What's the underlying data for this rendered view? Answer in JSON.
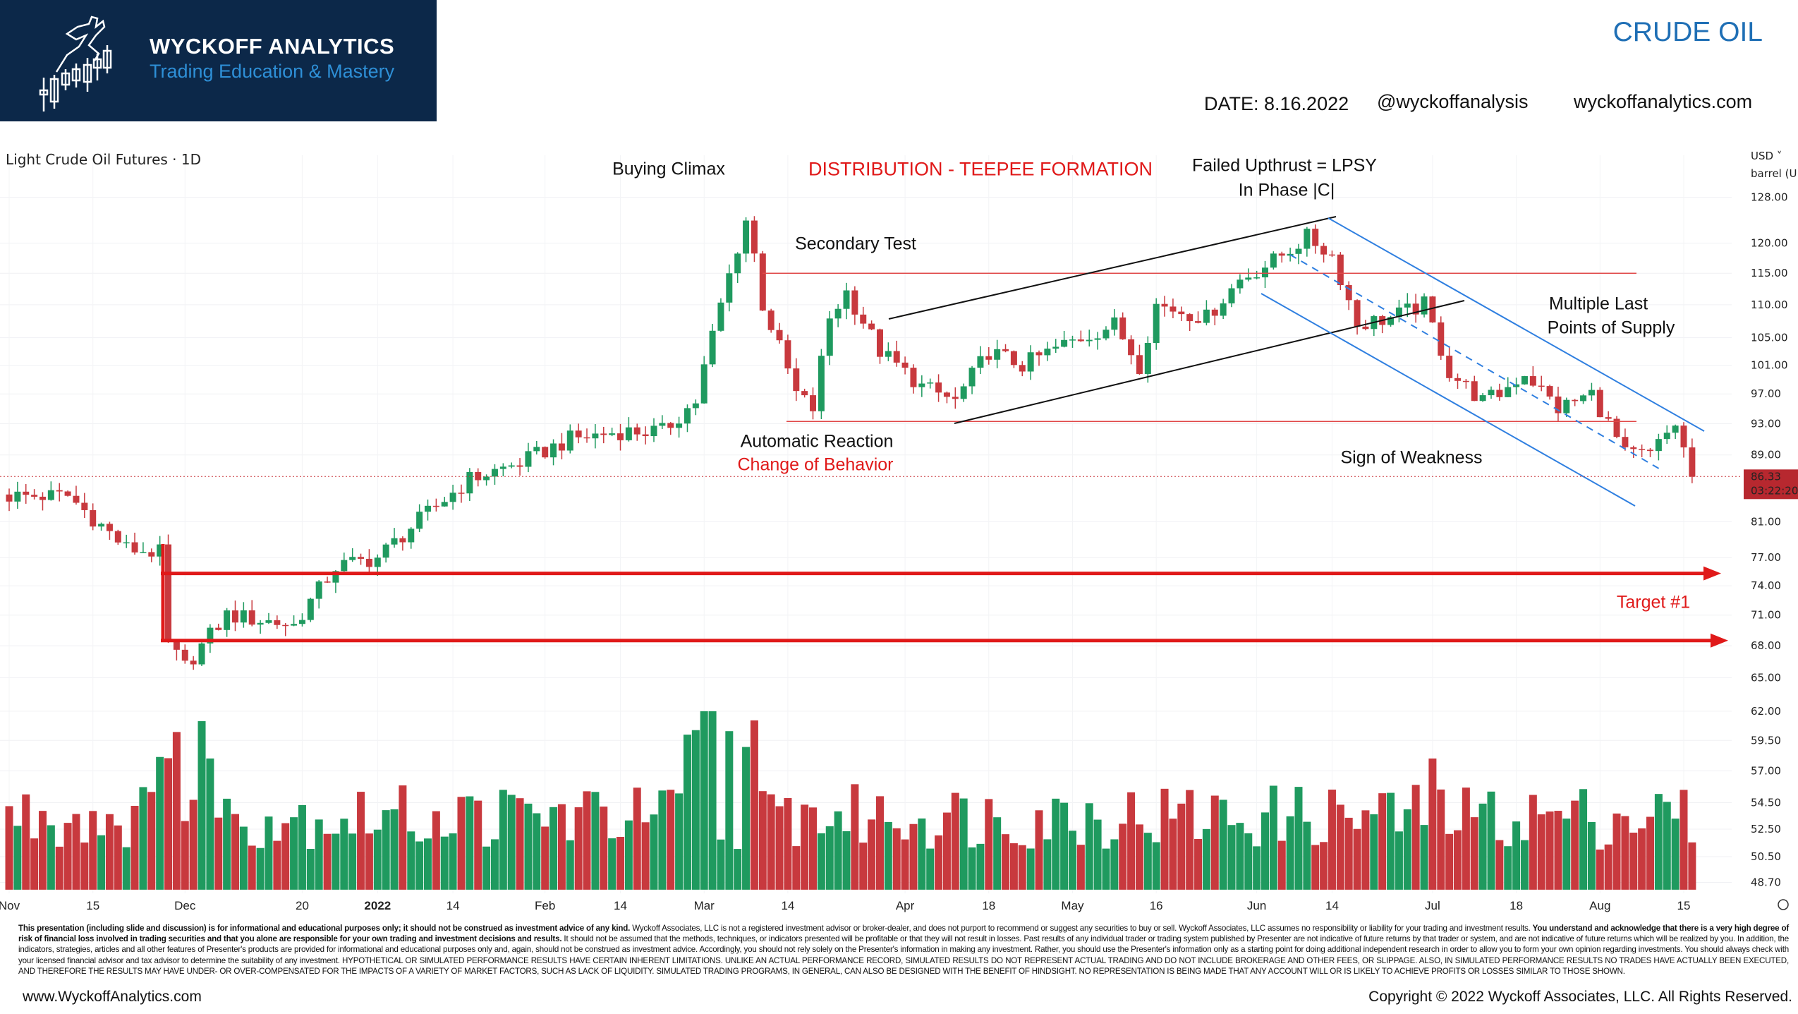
{
  "brand": {
    "name": "WYCKOFF ANALYTICS",
    "tagline": "Trading Education & Mastery"
  },
  "header": {
    "title": "CRUDE OIL",
    "date": "DATE: 8.16.2022",
    "handle": "@wyckoffanalysis",
    "website": "wyckoffanalytics.com"
  },
  "colors": {
    "up": "#1f9a5f",
    "down": "#c8393e",
    "annotation_red": "#e01919",
    "channel_blue": "#2f7fe0",
    "brand_bg": "#0c2849"
  },
  "chart_data": {
    "type": "candlestick",
    "title": "Light Crude Oil Futures · 1D",
    "currency": "USD",
    "unit": "barrel (U",
    "scale": "log",
    "y_ticks": [
      "128.00",
      "120.00",
      "115.00",
      "110.00",
      "105.00",
      "101.00",
      "97.00",
      "93.00",
      "89.00",
      "81.00",
      "77.00",
      "74.00",
      "71.00",
      "68.00",
      "65.00",
      "62.00",
      "59.50",
      "57.00",
      "54.50",
      "52.50",
      "50.50",
      "48.70"
    ],
    "last_price": "86.33",
    "countdown": "03:22:20",
    "bar_count": 202,
    "x_ticks": [
      [
        "Nov",
        0
      ],
      [
        "15",
        10
      ],
      [
        "Dec",
        21
      ],
      [
        "20",
        35
      ],
      [
        "2022",
        44
      ],
      [
        "14",
        53
      ],
      [
        "Feb",
        64
      ],
      [
        "14",
        73
      ],
      [
        "Mar",
        83
      ],
      [
        "14",
        93
      ],
      [
        "Apr",
        107
      ],
      [
        "18",
        117
      ],
      [
        "May",
        127
      ],
      [
        "16",
        137
      ],
      [
        "Jun",
        149
      ],
      [
        "14",
        158
      ],
      [
        "Jul",
        170
      ],
      [
        "18",
        180
      ],
      [
        "Aug",
        190
      ],
      [
        "15",
        200
      ]
    ],
    "close_path": [
      [
        0,
        84
      ],
      [
        7,
        84
      ],
      [
        14,
        78
      ],
      [
        18,
        77.5
      ],
      [
        19,
        68
      ],
      [
        21,
        66
      ],
      [
        26,
        71
      ],
      [
        34,
        70
      ],
      [
        39,
        76
      ],
      [
        44,
        77
      ],
      [
        50,
        82
      ],
      [
        55,
        86
      ],
      [
        61,
        88
      ],
      [
        67,
        91
      ],
      [
        73,
        92
      ],
      [
        78,
        92
      ],
      [
        82,
        96
      ],
      [
        85,
        110
      ],
      [
        88,
        124
      ],
      [
        89,
        118
      ],
      [
        90,
        110
      ],
      [
        94,
        97
      ],
      [
        96,
        95
      ],
      [
        98,
        108
      ],
      [
        100,
        112
      ],
      [
        104,
        103
      ],
      [
        109,
        98
      ],
      [
        113,
        96
      ],
      [
        117,
        103
      ],
      [
        121,
        101
      ],
      [
        126,
        104
      ],
      [
        132,
        107
      ],
      [
        135,
        101
      ],
      [
        137,
        110
      ],
      [
        143,
        108
      ],
      [
        147,
        114
      ],
      [
        151,
        117
      ],
      [
        155,
        121
      ],
      [
        158,
        118
      ],
      [
        161,
        107
      ],
      [
        165,
        108
      ],
      [
        169,
        110
      ],
      [
        172,
        100
      ],
      [
        176,
        96
      ],
      [
        178,
        97
      ],
      [
        181,
        100
      ],
      [
        185,
        95
      ],
      [
        189,
        97
      ],
      [
        193,
        89
      ],
      [
        196,
        89
      ],
      [
        199,
        93
      ],
      [
        201,
        86.3
      ]
    ],
    "levels": {
      "resistance": 115,
      "support": 93.3,
      "target_upper": 75.3,
      "target_lower": 68.5
    }
  },
  "annotations": {
    "buying_climax": "Buying Climax",
    "pattern": "DISTRIBUTION - TEEPEE FORMATION",
    "failed_upthrust": "Failed Upthrust = LPSY",
    "phase": "In Phase |C|",
    "secondary_test": "Secondary Test",
    "mlps_1": "Multiple Last",
    "mlps_2": "Points of Supply",
    "automatic_reaction": "Automatic Reaction",
    "change_of_behavior": "Change of Behavior",
    "sign_of_weakness": "Sign of Weakness",
    "target": "Target #1"
  },
  "footer": {
    "d1_bold": "This presentation (including slide and discussion) is for informational and educational purposes only; it should not be construed as investment advice of any kind.",
    "d1": " Wyckoff Associates, LLC is not a registered investment advisor or broker-dealer, and does not purport to recommend or suggest any securities to buy or sell. Wyckoff Associates, LLC assumes no responsibility or liability for your trading and investment results. ",
    "d2_bold": "You understand and acknowledge that there is a very high degree of risk of financial loss involved in trading securities and that you alone are responsible for your own trading and investment decisions and results.",
    "d2": " It should not be assumed that the methods, techniques, or indicators presented will be profitable or that they will not result in losses. Past results of any individual trader or trading system published by Presenter are not indicative of future returns by that trader or system, and are not indicative of future returns which will be realized by you. In addition, the indicators, strategies, articles and all other features of Presenter's products are provided for informational and educational purposes only and, again, should not be construed as investment advice. Accordingly, you should not rely solely on the Presenter's information in making any investment. Rather, you should use the Presenter's information only as a starting point for doing additional independent research in order to allow you to form your own opinion regarding investments. You should always check with your licensed financial advisor and tax advisor to determine the suitability of any investment. HYPOTHETICAL OR SIMULATED PERFORMANCE RESULTS HAVE CERTAIN INHERENT LIMITATIONS. UNLIKE AN ACTUAL PERFORMANCE RECORD, SIMULATED RESULTS DO NOT REPRESENT ACTUAL TRADING AND DO NOT INCLUDE BROKERAGE AND OTHER FEES, OR SLIPPAGE. ALSO, IN SIMULATED PERFORMANCE RESULTS NO TRADES HAVE ACTUALLY BEEN EXECUTED, AND THEREFORE THE RESULTS MAY HAVE UNDER- OR OVER-COMPENSATED FOR THE IMPACTS OF A VARIETY OF MARKET FACTORS, SUCH AS LACK OF LIQUIDITY. SIMULATED TRADING PROGRAMS, IN GENERAL, CAN ALSO BE DESIGNED WITH THE BENEFIT OF HINDSIGHT. NO REPRESENTATION IS BEING MADE THAT ANY ACCOUNT WILL OR IS LIKELY TO ACHIEVE PROFITS OR LOSSES SIMILAR TO THOSE SHOWN.",
    "site": "www.WyckoffAnalytics.com",
    "copyright": "Copyright © 2022 Wyckoff Associates, LLC. All Rights Reserved."
  }
}
